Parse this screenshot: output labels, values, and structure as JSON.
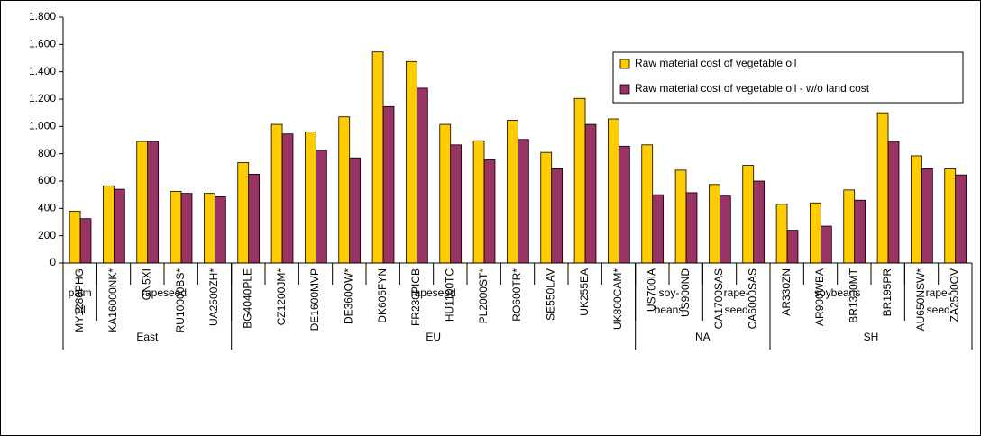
{
  "chart_data": {
    "type": "bar",
    "series": [
      {
        "name": "Raw material cost of vegetable oil",
        "color": "#FFCC00",
        "values": [
          380,
          565,
          890,
          525,
          510,
          735,
          1015,
          960,
          1070,
          1545,
          1475,
          1015,
          895,
          1045,
          810,
          1205,
          1055,
          865,
          680,
          575,
          715,
          430,
          440,
          535,
          1100,
          785,
          690
        ]
      },
      {
        "name": "Raw material cost of vegetable oil - w/o land cost",
        "color": "#993366",
        "values": [
          325,
          540,
          890,
          510,
          485,
          650,
          945,
          825,
          770,
          1145,
          1280,
          865,
          755,
          905,
          690,
          1015,
          855,
          500,
          515,
          490,
          600,
          240,
          270,
          460,
          890,
          690,
          645
        ]
      }
    ],
    "regions": [
      {
        "name": "East",
        "groups": [
          {
            "name": [
              "palm",
              "oil"
            ],
            "categories": [
              "MY1280PHG"
            ]
          },
          {
            "name": [
              "rapeseed"
            ],
            "categories": [
              "KA16000NK*",
              "CN5XI",
              "RU10000BS*",
              "UA2500ZH*"
            ]
          }
        ]
      },
      {
        "name": "EU",
        "groups": [
          {
            "name": [
              "rapeseed"
            ],
            "categories": [
              "BG4040PLE",
              "CZ1200JM*",
              "DE1600MVP",
              "DE360OW*",
              "DK605FYN",
              "FR230PICB",
              "HU1100TC",
              "PL2000ST*",
              "RO600TR*",
              "SE550LAV",
              "UK255EA",
              "UK800CAM*"
            ]
          }
        ]
      },
      {
        "name": "NA",
        "groups": [
          {
            "name": [
              "soy-",
              "beans"
            ],
            "categories": [
              "US700IA",
              "US900ND"
            ]
          },
          {
            "name": [
              "rape-",
              "seed"
            ],
            "categories": [
              "CA1700SAS",
              "CA6000SAS"
            ]
          }
        ]
      },
      {
        "name": "SH",
        "groups": [
          {
            "name": [
              "soybeans"
            ],
            "categories": [
              "AR330ZN",
              "AR900WBA",
              "BR1300MT",
              "BR195PR"
            ]
          },
          {
            "name": [
              "rape-",
              "seed"
            ],
            "categories": [
              "AU650NSW*",
              "ZA2500OV"
            ]
          }
        ]
      }
    ],
    "ylim": [
      0,
      1800
    ],
    "yticks": [
      0,
      200,
      400,
      600,
      800,
      {
        "value": 1000,
        "label": "1.000"
      },
      {
        "value": 1200,
        "label": "1.200"
      },
      {
        "value": 1400,
        "label": "1.400"
      },
      {
        "value": 1600,
        "label": "1.600"
      },
      {
        "value": 1800,
        "label": "1.800"
      }
    ],
    "legend": "upper right"
  }
}
